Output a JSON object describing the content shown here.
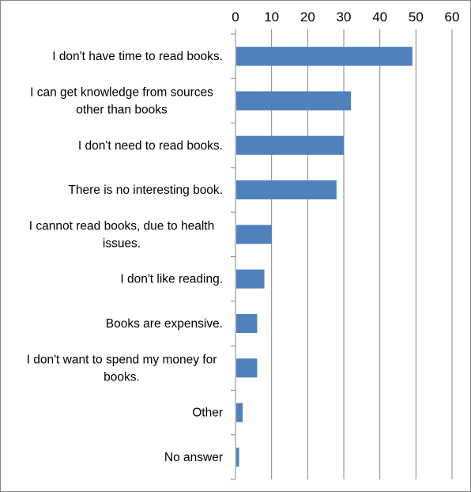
{
  "chart_data": {
    "type": "bar",
    "orientation": "horizontal",
    "title": "",
    "xlabel": "",
    "ylabel": "",
    "xlim": [
      0,
      60
    ],
    "x_ticks": [
      0,
      10,
      20,
      30,
      40,
      50,
      60
    ],
    "x_axis_position": "top",
    "grid": "vertical major gridlines",
    "legend": "none",
    "bar_color": "#4F81BD",
    "categories": [
      [
        "I don't have time to read books."
      ],
      [
        "I can get knowledge from sources",
        "other than books"
      ],
      [
        "I don't need to read books."
      ],
      [
        "There is no interesting book."
      ],
      [
        "I cannot read books, due to health",
        "issues."
      ],
      [
        "I don't like reading."
      ],
      [
        "Books are expensive."
      ],
      [
        "I don't want to spend my money for",
        "books."
      ],
      [
        "Other"
      ],
      [
        "No answer"
      ]
    ],
    "values": [
      49,
      32,
      30,
      28,
      10,
      8,
      6,
      6,
      2,
      1
    ]
  }
}
